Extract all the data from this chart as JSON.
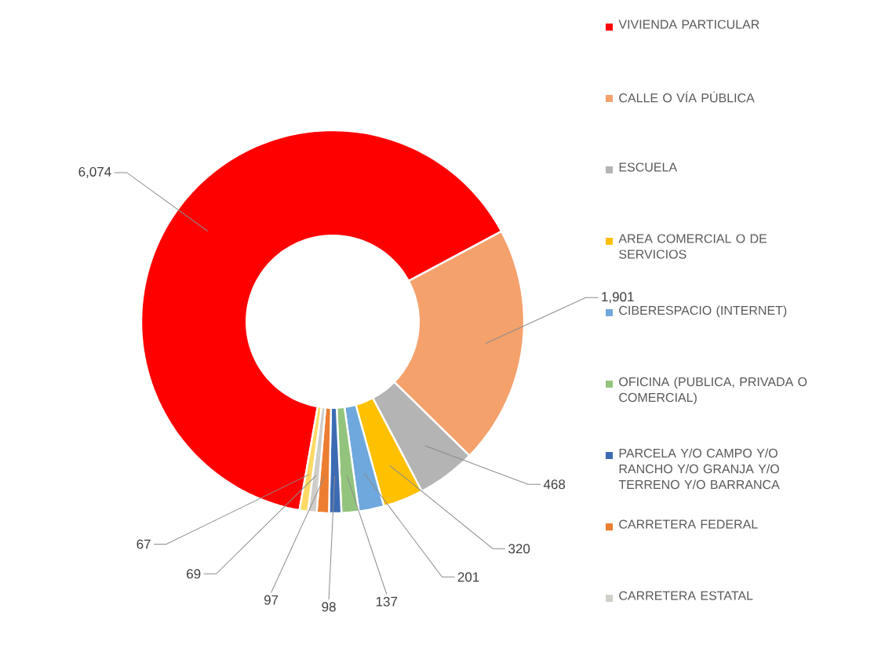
{
  "chart_data": {
    "type": "donut",
    "categories": [
      "VIVIENDA PARTICULAR",
      "CALLE O VÍA PÚBLICA",
      "ESCUELA",
      "AREA COMERCIAL O DE SERVICIOS",
      "CIBERESPACIO (INTERNET)",
      "OFICINA (PUBLICA, PRIVADA O COMERCIAL)",
      "PARCELA Y/O CAMPO Y/O RANCHO Y/O GRANJA Y/O TERRENO Y/O BARRANCA",
      "CARRETERA FEDERAL",
      "CARRETERA ESTATAL",
      null
    ],
    "values": [
      6074,
      1901,
      468,
      320,
      201,
      137,
      98,
      97,
      69,
      67
    ],
    "value_labels": [
      "6,074",
      "1,901",
      "468",
      "320",
      "201",
      "137",
      "98",
      "97",
      "69",
      "67"
    ],
    "colors": [
      "#ff0000",
      "#f4a16c",
      "#b4b4b4",
      "#ffc000",
      "#6fa8dc",
      "#93c47d",
      "#3d6bb3",
      "#ed7d31",
      "#d0cec8",
      "#ffd966"
    ],
    "legend": "right"
  }
}
